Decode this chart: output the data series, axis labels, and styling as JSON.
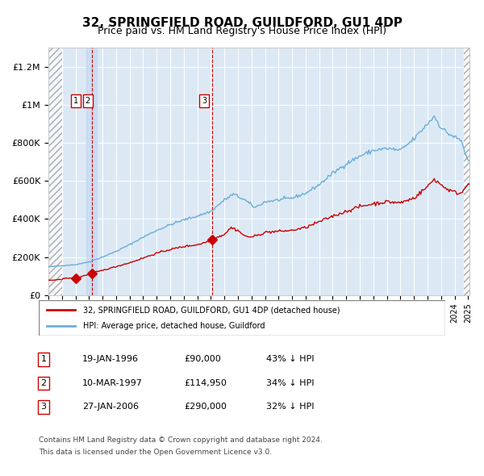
{
  "title": "32, SPRINGFIELD ROAD, GUILDFORD, GU1 4DP",
  "subtitle": "Price paid vs. HM Land Registry's House Price Index (HPI)",
  "x_start_year": 1994,
  "x_end_year": 2025,
  "y_min": 0,
  "y_max": 1300000,
  "y_ticks": [
    0,
    200000,
    400000,
    600000,
    800000,
    1000000,
    1200000
  ],
  "y_tick_labels": [
    "£0",
    "£200K",
    "£400K",
    "£600K",
    "£800K",
    "£1M",
    "£1.2M"
  ],
  "sale_dates": [
    "1996-01-19",
    "1997-03-10",
    "2006-01-27"
  ],
  "sale_prices": [
    90000,
    114950,
    290000
  ],
  "sale_labels": [
    "1",
    "2",
    "3"
  ],
  "legend_line1": "32, SPRINGFIELD ROAD, GUILDFORD, GU1 4DP (detached house)",
  "legend_line2": "HPI: Average price, detached house, Guildford",
  "table_entries": [
    {
      "num": "1",
      "date": "19-JAN-1996",
      "price": "£90,000",
      "hpi": "43% ↓ HPI"
    },
    {
      "num": "2",
      "date": "10-MAR-1997",
      "price": "£114,950",
      "hpi": "34% ↓ HPI"
    },
    {
      "num": "3",
      "date": "27-JAN-2006",
      "price": "£290,000",
      "hpi": "32% ↓ HPI"
    }
  ],
  "footnote1": "Contains HM Land Registry data © Crown copyright and database right 2024.",
  "footnote2": "This data is licensed under the Open Government Licence v3.0.",
  "hpi_color": "#6baed6",
  "price_color": "#cc0000",
  "bg_color": "#dce9f5",
  "hatch_color": "#c8c8c8",
  "vline_color": "#cc0000",
  "marker_color": "#cc0000",
  "label_bg": "#ffffff",
  "label_border": "#cc0000"
}
